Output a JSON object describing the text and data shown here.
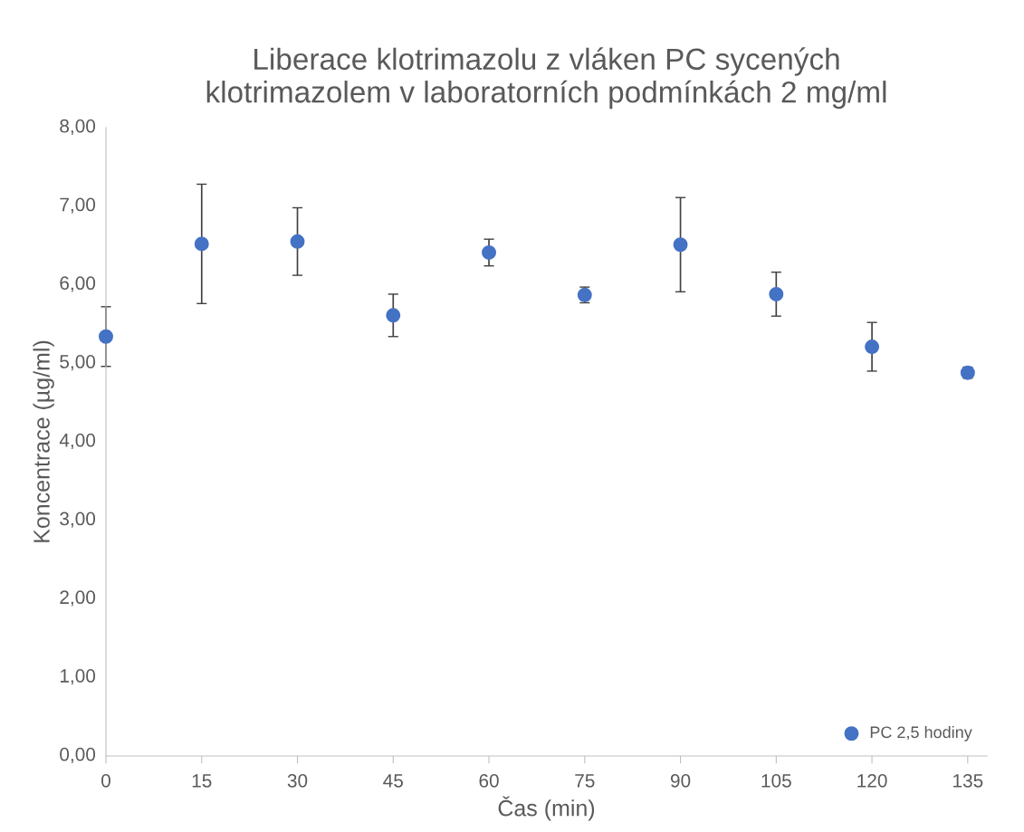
{
  "chart_data": {
    "type": "scatter",
    "title": "Liberace klotrimazolu z vláken PC sycených\nklotrimazolem v laboratorních podmínkách 2 mg/ml",
    "xlabel": "Čas (min)",
    "ylabel": "Koncentrace (µg/ml)",
    "x": [
      0,
      15,
      30,
      45,
      60,
      75,
      90,
      105,
      120,
      135
    ],
    "series": [
      {
        "name": "PC 2,5 hodiny",
        "color": "#4472c4",
        "values": [
          5.34,
          6.52,
          6.55,
          5.61,
          6.41,
          5.87,
          6.51,
          5.88,
          5.21,
          4.88
        ],
        "errors": [
          0.38,
          0.76,
          0.43,
          0.27,
          0.17,
          0.1,
          0.6,
          0.28,
          0.31,
          0.07
        ]
      }
    ],
    "xlim": [
      0,
      138
    ],
    "xticks": [
      0,
      15,
      30,
      45,
      60,
      75,
      90,
      105,
      120,
      135
    ],
    "ylim": [
      0,
      8
    ],
    "yticks": [
      {
        "value": 0,
        "label": "0,00"
      },
      {
        "value": 1,
        "label": "1,00"
      },
      {
        "value": 2,
        "label": "2,00"
      },
      {
        "value": 3,
        "label": "3,00"
      },
      {
        "value": 4,
        "label": "4,00"
      },
      {
        "value": 5,
        "label": "5,00"
      },
      {
        "value": 6,
        "label": "6,00"
      },
      {
        "value": 7,
        "label": "7,00"
      },
      {
        "value": 8,
        "label": "8,00"
      }
    ],
    "marker": "circle",
    "legend": "bottom right",
    "grid": false
  }
}
